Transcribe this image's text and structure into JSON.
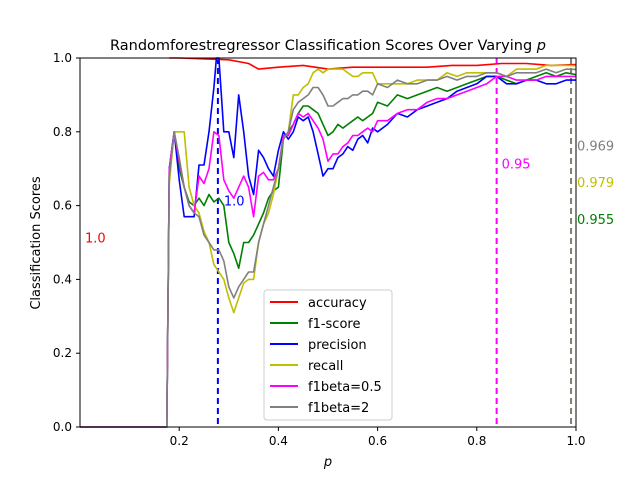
{
  "chart_data": {
    "type": "line",
    "title": "Randomforestregressor Classification Scores Over Varying ",
    "title_var": "p",
    "xlabel": "p",
    "ylabel": "Classification Scores",
    "xlim": [
      0.0,
      1.0
    ],
    "ylim": [
      0.0,
      1.0
    ],
    "xticks": [
      {
        "value": 0.2,
        "label": "0.2"
      },
      {
        "value": 0.4,
        "label": "0.4"
      },
      {
        "value": 0.6,
        "label": "0.6"
      },
      {
        "value": 0.8,
        "label": "0.8"
      },
      {
        "value": 1.0,
        "label": "1.0"
      }
    ],
    "yticks": [
      {
        "value": 0.0,
        "label": "0.0"
      },
      {
        "value": 0.2,
        "label": "0.2"
      },
      {
        "value": 0.4,
        "label": "0.4"
      },
      {
        "value": 0.6,
        "label": "0.6"
      },
      {
        "value": 0.8,
        "label": "0.8"
      },
      {
        "value": 1.0,
        "label": "1.0"
      }
    ],
    "grid": false,
    "legend_position": "lower-center",
    "series": [
      {
        "name": "accuracy",
        "color": "#ff0000",
        "x": [
          0.18,
          0.2,
          0.3,
          0.34,
          0.36,
          0.4,
          0.45,
          0.5,
          0.55,
          0.6,
          0.65,
          0.7,
          0.75,
          0.8,
          0.85,
          0.9,
          0.95,
          1.0
        ],
        "y": [
          1.0,
          1.0,
          0.995,
          0.985,
          0.97,
          0.975,
          0.98,
          0.97,
          0.975,
          0.975,
          0.975,
          0.975,
          0.98,
          0.98,
          0.985,
          0.985,
          0.98,
          0.982
        ]
      },
      {
        "name": "f1-score",
        "color": "#008000",
        "x": [
          0.0,
          0.175,
          0.18,
          0.19,
          0.2,
          0.21,
          0.22,
          0.23,
          0.24,
          0.25,
          0.26,
          0.27,
          0.28,
          0.29,
          0.3,
          0.31,
          0.32,
          0.33,
          0.34,
          0.35,
          0.36,
          0.37,
          0.38,
          0.39,
          0.4,
          0.41,
          0.42,
          0.43,
          0.44,
          0.45,
          0.46,
          0.47,
          0.48,
          0.49,
          0.5,
          0.51,
          0.52,
          0.53,
          0.54,
          0.55,
          0.56,
          0.57,
          0.58,
          0.59,
          0.6,
          0.62,
          0.64,
          0.66,
          0.68,
          0.7,
          0.72,
          0.74,
          0.76,
          0.78,
          0.8,
          0.82,
          0.84,
          0.86,
          0.88,
          0.9,
          0.92,
          0.94,
          0.96,
          0.98,
          1.0
        ],
        "y": [
          0.0,
          0.0,
          0.7,
          0.8,
          0.7,
          0.65,
          0.61,
          0.6,
          0.62,
          0.6,
          0.63,
          0.61,
          0.62,
          0.6,
          0.5,
          0.47,
          0.43,
          0.5,
          0.5,
          0.52,
          0.55,
          0.58,
          0.62,
          0.64,
          0.65,
          0.78,
          0.8,
          0.82,
          0.85,
          0.87,
          0.87,
          0.86,
          0.85,
          0.82,
          0.79,
          0.8,
          0.82,
          0.81,
          0.82,
          0.83,
          0.84,
          0.83,
          0.84,
          0.85,
          0.88,
          0.87,
          0.9,
          0.89,
          0.9,
          0.91,
          0.92,
          0.91,
          0.92,
          0.93,
          0.94,
          0.95,
          0.95,
          0.94,
          0.93,
          0.94,
          0.95,
          0.96,
          0.95,
          0.96,
          0.955
        ]
      },
      {
        "name": "precision",
        "color": "#0000ff",
        "x": [
          0.0,
          0.175,
          0.18,
          0.19,
          0.2,
          0.21,
          0.22,
          0.23,
          0.24,
          0.25,
          0.26,
          0.27,
          0.275,
          0.28,
          0.29,
          0.3,
          0.31,
          0.32,
          0.33,
          0.34,
          0.35,
          0.36,
          0.37,
          0.38,
          0.39,
          0.4,
          0.41,
          0.42,
          0.43,
          0.44,
          0.45,
          0.46,
          0.47,
          0.48,
          0.49,
          0.5,
          0.51,
          0.52,
          0.53,
          0.54,
          0.55,
          0.56,
          0.57,
          0.58,
          0.59,
          0.6,
          0.62,
          0.64,
          0.66,
          0.68,
          0.7,
          0.72,
          0.74,
          0.76,
          0.78,
          0.8,
          0.82,
          0.84,
          0.86,
          0.88,
          0.9,
          0.92,
          0.94,
          0.96,
          0.98,
          1.0
        ],
        "y": [
          0.0,
          0.0,
          0.7,
          0.8,
          0.67,
          0.57,
          0.57,
          0.57,
          0.71,
          0.71,
          0.8,
          0.92,
          1.0,
          1.0,
          0.8,
          0.8,
          0.73,
          0.9,
          0.8,
          0.68,
          0.63,
          0.75,
          0.73,
          0.7,
          0.68,
          0.75,
          0.8,
          0.78,
          0.8,
          0.84,
          0.83,
          0.84,
          0.8,
          0.74,
          0.68,
          0.7,
          0.7,
          0.73,
          0.74,
          0.76,
          0.75,
          0.78,
          0.79,
          0.77,
          0.81,
          0.8,
          0.82,
          0.85,
          0.84,
          0.86,
          0.87,
          0.88,
          0.89,
          0.91,
          0.92,
          0.93,
          0.95,
          0.95,
          0.93,
          0.93,
          0.94,
          0.94,
          0.93,
          0.93,
          0.94,
          0.94
        ]
      },
      {
        "name": "recall",
        "color": "#bfbf00",
        "x": [
          0.0,
          0.175,
          0.18,
          0.19,
          0.2,
          0.21,
          0.22,
          0.23,
          0.24,
          0.25,
          0.26,
          0.27,
          0.28,
          0.29,
          0.3,
          0.31,
          0.32,
          0.33,
          0.34,
          0.35,
          0.36,
          0.37,
          0.38,
          0.39,
          0.4,
          0.41,
          0.42,
          0.43,
          0.44,
          0.45,
          0.46,
          0.47,
          0.48,
          0.49,
          0.5,
          0.51,
          0.52,
          0.53,
          0.54,
          0.55,
          0.56,
          0.57,
          0.58,
          0.59,
          0.6,
          0.62,
          0.64,
          0.66,
          0.68,
          0.7,
          0.72,
          0.74,
          0.76,
          0.78,
          0.8,
          0.82,
          0.84,
          0.86,
          0.88,
          0.9,
          0.92,
          0.94,
          0.96,
          0.98,
          1.0
        ],
        "y": [
          0.0,
          0.0,
          0.66,
          0.8,
          0.8,
          0.8,
          0.65,
          0.6,
          0.58,
          0.53,
          0.5,
          0.44,
          0.42,
          0.4,
          0.35,
          0.31,
          0.35,
          0.39,
          0.4,
          0.4,
          0.5,
          0.55,
          0.58,
          0.63,
          0.7,
          0.78,
          0.8,
          0.9,
          0.9,
          0.92,
          0.93,
          0.96,
          0.97,
          0.96,
          0.97,
          0.97,
          0.97,
          0.97,
          0.96,
          0.95,
          0.95,
          0.96,
          0.96,
          0.96,
          0.93,
          0.93,
          0.93,
          0.93,
          0.94,
          0.94,
          0.94,
          0.96,
          0.95,
          0.96,
          0.96,
          0.96,
          0.96,
          0.95,
          0.97,
          0.97,
          0.97,
          0.98,
          0.98,
          0.98,
          0.979
        ]
      },
      {
        "name": "f1beta=0.5",
        "color": "#ff00ff",
        "x": [
          0.0,
          0.175,
          0.18,
          0.19,
          0.2,
          0.21,
          0.22,
          0.23,
          0.24,
          0.25,
          0.26,
          0.27,
          0.28,
          0.29,
          0.3,
          0.31,
          0.32,
          0.33,
          0.34,
          0.35,
          0.36,
          0.37,
          0.38,
          0.39,
          0.4,
          0.41,
          0.42,
          0.43,
          0.44,
          0.45,
          0.46,
          0.47,
          0.48,
          0.49,
          0.5,
          0.51,
          0.52,
          0.53,
          0.54,
          0.55,
          0.56,
          0.57,
          0.58,
          0.59,
          0.6,
          0.62,
          0.64,
          0.66,
          0.68,
          0.7,
          0.72,
          0.74,
          0.76,
          0.78,
          0.8,
          0.82,
          0.84,
          0.86,
          0.88,
          0.9,
          0.92,
          0.94,
          0.96,
          0.98,
          1.0
        ],
        "y": [
          0.0,
          0.0,
          0.7,
          0.8,
          0.72,
          0.65,
          0.6,
          0.58,
          0.68,
          0.66,
          0.7,
          0.8,
          0.79,
          0.67,
          0.64,
          0.62,
          0.65,
          0.68,
          0.65,
          0.57,
          0.68,
          0.69,
          0.67,
          0.67,
          0.7,
          0.79,
          0.79,
          0.82,
          0.85,
          0.84,
          0.85,
          0.83,
          0.81,
          0.78,
          0.72,
          0.74,
          0.74,
          0.76,
          0.77,
          0.79,
          0.79,
          0.8,
          0.81,
          0.8,
          0.83,
          0.83,
          0.85,
          0.86,
          0.86,
          0.88,
          0.89,
          0.89,
          0.9,
          0.91,
          0.92,
          0.93,
          0.95,
          0.95,
          0.94,
          0.94,
          0.94,
          0.95,
          0.95,
          0.95,
          0.95
        ]
      },
      {
        "name": "f1beta=2",
        "color": "#808080",
        "x": [
          0.0,
          0.175,
          0.18,
          0.19,
          0.2,
          0.21,
          0.22,
          0.23,
          0.24,
          0.25,
          0.26,
          0.27,
          0.28,
          0.29,
          0.3,
          0.31,
          0.32,
          0.33,
          0.34,
          0.35,
          0.36,
          0.37,
          0.38,
          0.39,
          0.4,
          0.41,
          0.42,
          0.43,
          0.44,
          0.45,
          0.46,
          0.47,
          0.48,
          0.49,
          0.5,
          0.51,
          0.52,
          0.53,
          0.54,
          0.55,
          0.56,
          0.57,
          0.58,
          0.59,
          0.6,
          0.62,
          0.64,
          0.66,
          0.68,
          0.7,
          0.72,
          0.74,
          0.76,
          0.78,
          0.8,
          0.82,
          0.84,
          0.86,
          0.88,
          0.9,
          0.92,
          0.94,
          0.96,
          0.98,
          1.0
        ],
        "y": [
          0.0,
          0.0,
          0.68,
          0.8,
          0.73,
          0.65,
          0.6,
          0.58,
          0.57,
          0.52,
          0.5,
          0.48,
          0.48,
          0.45,
          0.38,
          0.35,
          0.38,
          0.4,
          0.42,
          0.42,
          0.5,
          0.55,
          0.6,
          0.65,
          0.7,
          0.78,
          0.8,
          0.86,
          0.88,
          0.89,
          0.9,
          0.92,
          0.92,
          0.9,
          0.87,
          0.87,
          0.88,
          0.89,
          0.89,
          0.9,
          0.9,
          0.91,
          0.91,
          0.9,
          0.93,
          0.92,
          0.94,
          0.93,
          0.93,
          0.94,
          0.94,
          0.95,
          0.94,
          0.95,
          0.95,
          0.96,
          0.96,
          0.95,
          0.96,
          0.96,
          0.96,
          0.97,
          0.96,
          0.97,
          0.969
        ]
      }
    ],
    "vlines": [
      {
        "x": 0.278,
        "color": "#0000ff"
      },
      {
        "x": 0.84,
        "color": "#ff00ff"
      },
      {
        "x": 0.99,
        "color": "#bfbf00"
      },
      {
        "x": 0.99,
        "color": "#808080"
      }
    ],
    "annotations": [
      {
        "text": "1.0",
        "x": 0.01,
        "y": 0.5,
        "color": "#ff0000"
      },
      {
        "text": "1.0",
        "x": 0.29,
        "y": 0.6,
        "color": "#0000ff"
      },
      {
        "text": "0.95",
        "x": 0.85,
        "y": 0.7,
        "color": "#ff00ff"
      },
      {
        "text": "0.969",
        "x": 1.002,
        "y": 0.75,
        "color": "#808080"
      },
      {
        "text": "0.979",
        "x": 1.002,
        "y": 0.65,
        "color": "#bfbf00"
      },
      {
        "text": "0.955",
        "x": 1.002,
        "y": 0.55,
        "color": "#008000"
      }
    ]
  }
}
